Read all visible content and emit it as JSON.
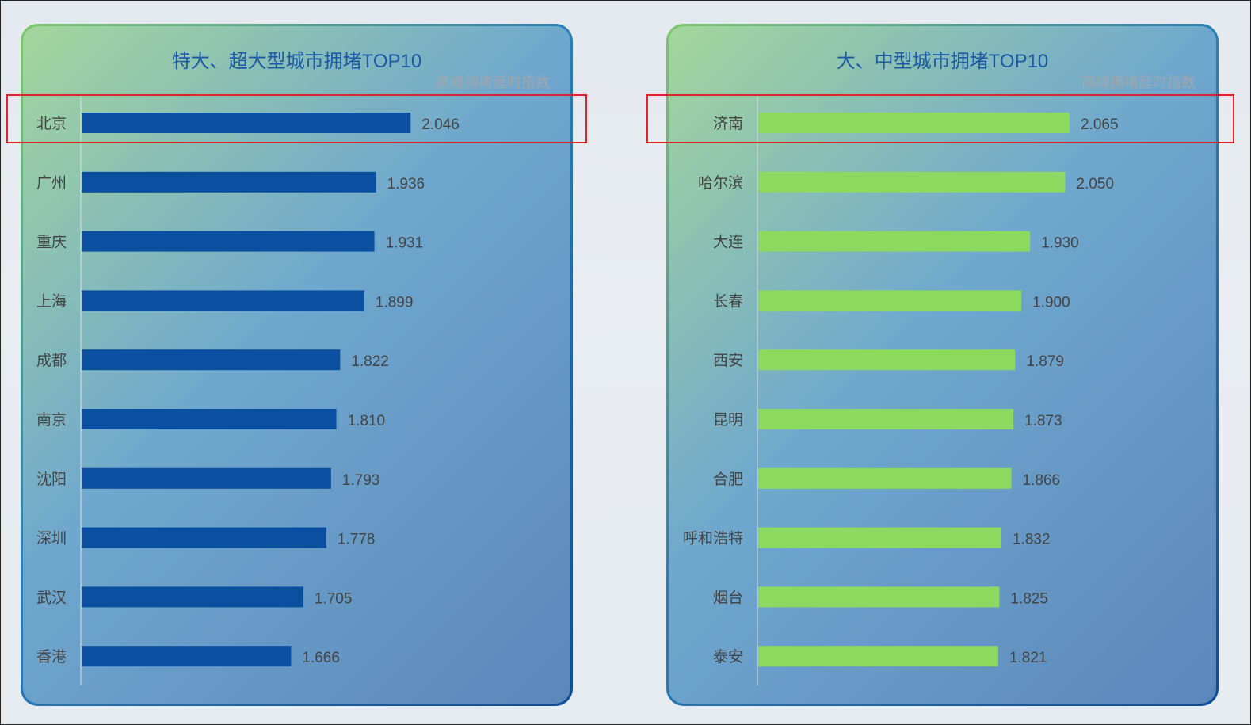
{
  "chart_data": [
    {
      "type": "bar",
      "orientation": "horizontal",
      "title": "特大、超大型城市拥堵TOP10",
      "subtitle": "高峰拥堵延时指数",
      "categories": [
        "北京",
        "广州",
        "重庆",
        "上海",
        "成都",
        "南京",
        "沈阳",
        "深圳",
        "武汉",
        "香港"
      ],
      "values": [
        2.046,
        1.936,
        1.931,
        1.899,
        1.822,
        1.81,
        1.793,
        1.778,
        1.705,
        1.666
      ],
      "labels": [
        "2.046",
        "1.936",
        "1.931",
        "1.899",
        "1.822",
        "1.810",
        "1.793",
        "1.778",
        "1.705",
        "1.666"
      ],
      "xlim": [
        1.0,
        2.1
      ],
      "bar_color": "#0a4fa0",
      "highlighted": "北京",
      "highlight_color": "#e0232a",
      "grid": false
    },
    {
      "type": "bar",
      "orientation": "horizontal",
      "title": "大、中型城市拥堵TOP10",
      "subtitle": "高峰拥堵延时指数",
      "categories": [
        "济南",
        "哈尔滨",
        "大连",
        "长春",
        "西安",
        "昆明",
        "合肥",
        "呼和浩特",
        "烟台",
        "泰安"
      ],
      "values": [
        2.065,
        2.05,
        1.93,
        1.9,
        1.879,
        1.873,
        1.866,
        1.832,
        1.825,
        1.821
      ],
      "labels": [
        "2.065",
        "2.050",
        "1.930",
        "1.900",
        "1.879",
        "1.873",
        "1.866",
        "1.832",
        "1.825",
        "1.821"
      ],
      "xlim": [
        1.0,
        2.1
      ],
      "bar_color": "#8bd95e",
      "highlighted": "济南",
      "highlight_color": "#e0232a",
      "grid": false
    }
  ]
}
